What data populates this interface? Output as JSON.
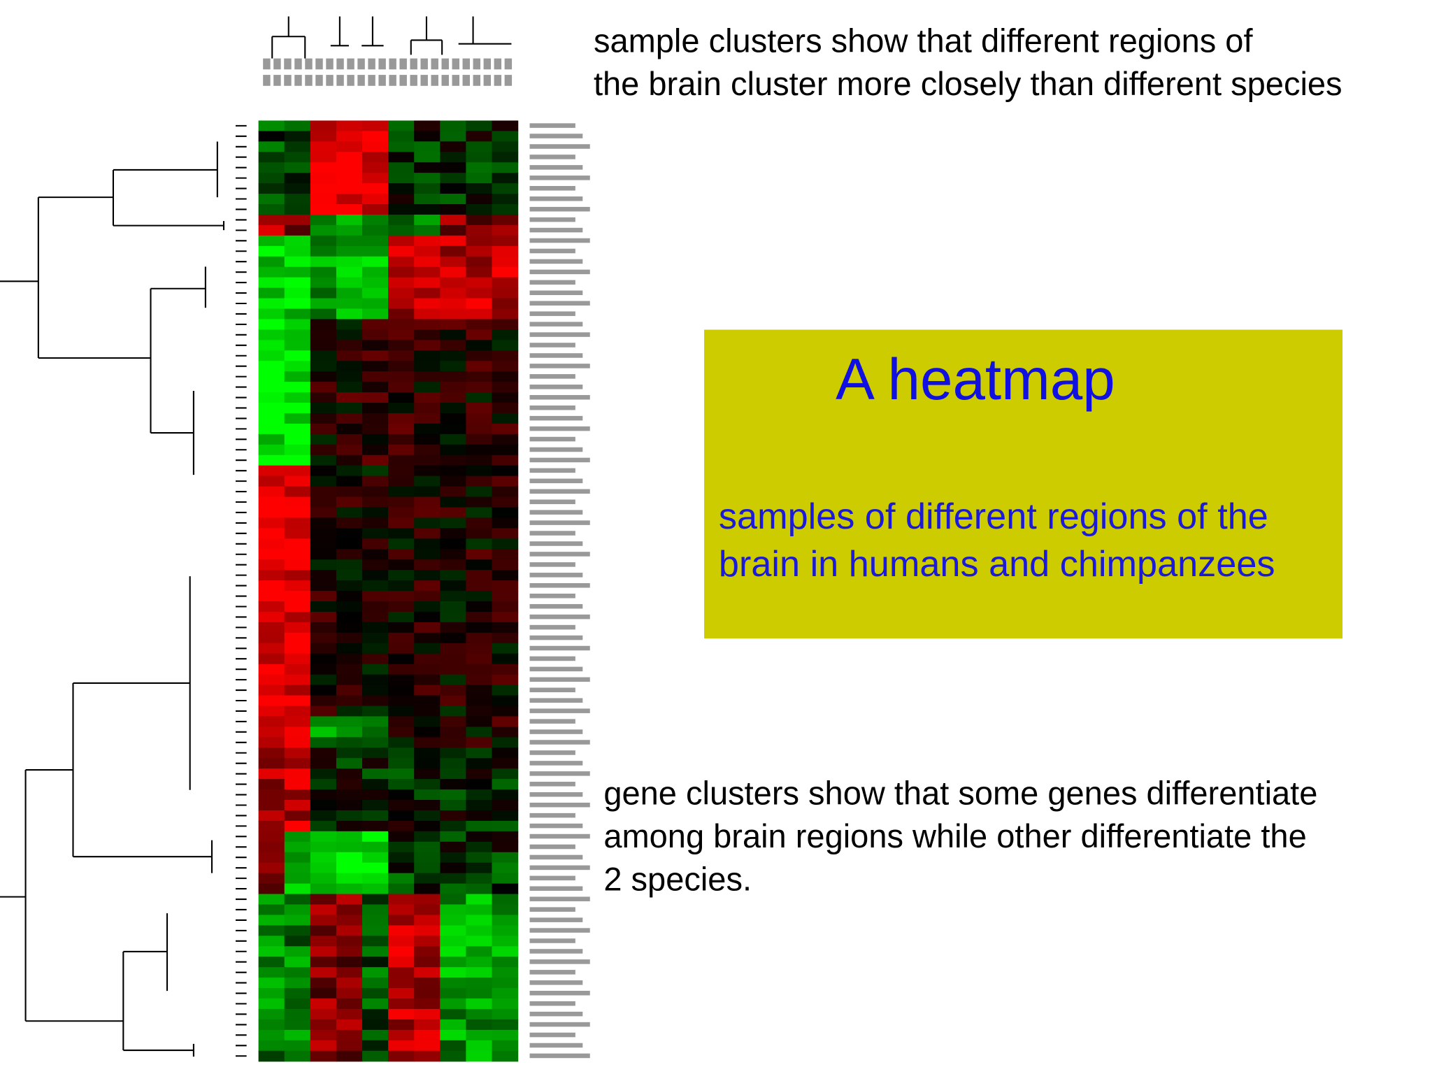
{
  "annotations": {
    "sample_clusters": [
      "sample clusters show that different regions of",
      "the brain cluster more closely than different species"
    ],
    "gene_clusters": [
      "gene clusters show that some genes differentiate",
      "among brain regions while other differentiate the",
      "2 species."
    ]
  },
  "callout": {
    "title": "A heatmap",
    "subtitle": [
      "samples of different regions of the",
      "brain in humans and chimpanzees"
    ]
  }
}
